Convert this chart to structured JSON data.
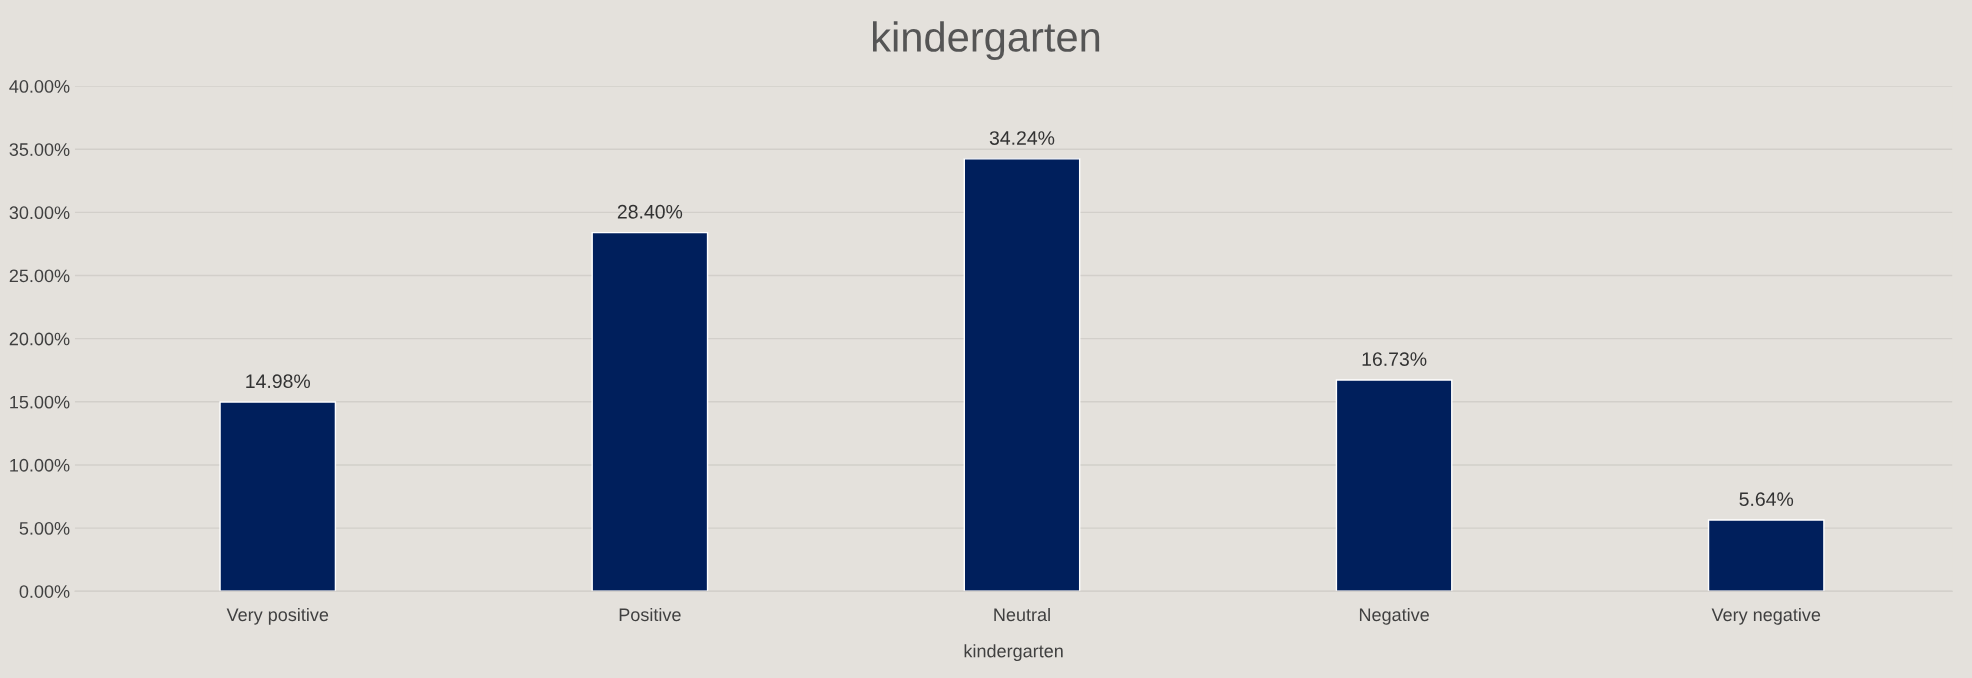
{
  "chart_data": {
    "type": "bar",
    "title": "kindergarten",
    "xlabel": "kindergarten",
    "categories": [
      "Very positive",
      "Positive",
      "Neutral",
      "Negative",
      "Very negative"
    ],
    "values": [
      14.98,
      28.4,
      34.24,
      16.73,
      5.64
    ],
    "value_labels": [
      "14.98%",
      "28.40%",
      "34.24%",
      "16.73%",
      "5.64%"
    ],
    "color": "#001f5c",
    "ylim": [
      0,
      40
    ],
    "yticks": [
      {
        "value": 0,
        "label": "0.00%"
      },
      {
        "value": 5,
        "label": "5.00%"
      },
      {
        "value": 10,
        "label": "10.00%"
      },
      {
        "value": 15,
        "label": "15.00%"
      },
      {
        "value": 20,
        "label": "20.00%"
      },
      {
        "value": 25,
        "label": "25.00%"
      },
      {
        "value": 30,
        "label": "30.00%"
      },
      {
        "value": 35,
        "label": "35.00%"
      },
      {
        "value": 40,
        "label": "40.00%"
      }
    ],
    "grid": "y",
    "legend": false
  }
}
